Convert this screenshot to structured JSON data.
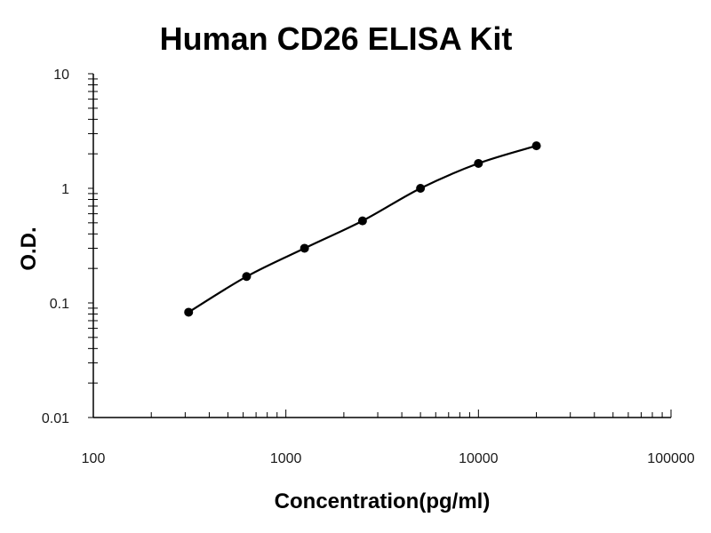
{
  "chart_data": {
    "type": "scatter",
    "title": "Human CD26 ELISA Kit",
    "xlabel": "Concentration(pg/ml)",
    "ylabel": "O.D.",
    "x_scale": "log",
    "y_scale": "log",
    "xlim": [
      100,
      100000
    ],
    "ylim": [
      0.01,
      10
    ],
    "x_ticks": [
      100,
      1000,
      10000,
      100000
    ],
    "x_tick_labels": [
      "100",
      "1000",
      "10000",
      "100000"
    ],
    "y_ticks": [
      0.01,
      0.1,
      1,
      10
    ],
    "y_tick_labels": [
      "0.01",
      "0.1",
      "1",
      "10"
    ],
    "grid": false,
    "legend": "none",
    "series": [
      {
        "x": [
          312.5,
          625,
          1250,
          2500,
          5000,
          10000,
          20000
        ],
        "y": [
          0.083,
          0.17,
          0.3,
          0.52,
          1.0,
          1.65,
          2.35
        ],
        "marker": "circle",
        "fit_line": true,
        "color": "#000000"
      }
    ]
  }
}
